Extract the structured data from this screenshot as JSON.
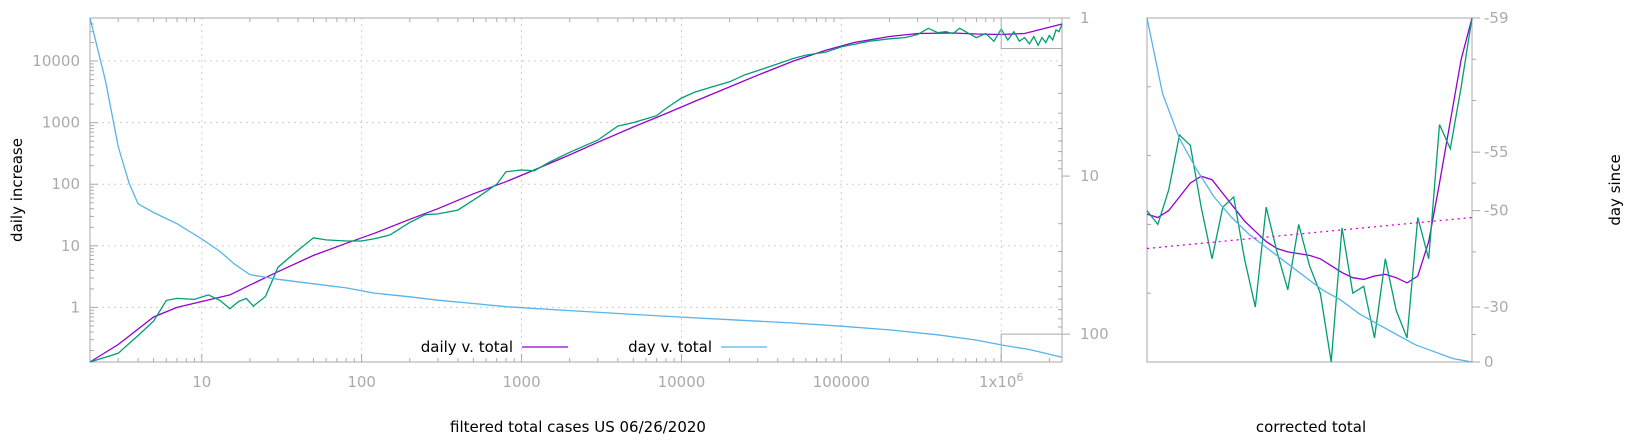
{
  "chart_data": [
    {
      "type": "line",
      "xlabel": "filtered total cases US 06/26/2020",
      "ylabel": "daily increase",
      "y2label": "",
      "xscale": "log",
      "yscale": "log",
      "xlim": [
        2,
        2400000
      ],
      "ylim": [
        0.13,
        50000
      ],
      "y2lim": [
        1,
        150
      ],
      "y2_reversed": true,
      "xticks": [
        10,
        100,
        1000,
        10000,
        100000,
        1000000
      ],
      "xtick_labels": [
        "10",
        "100",
        "1000",
        "10000",
        "100000",
        "1x10^6"
      ],
      "yticks": [
        1,
        10,
        100,
        1000,
        10000
      ],
      "ytick_labels": [
        "1",
        "10",
        "100",
        "1000",
        "10000"
      ],
      "y2ticks": [
        1,
        10,
        100
      ],
      "y2tick_labels": [
        "1",
        "10",
        "100"
      ],
      "grid": true,
      "legend": "bottom-center",
      "series": [
        {
          "name": "daily v. total",
          "color": "#9400d3",
          "axis": "y",
          "x": [
            2,
            3,
            5,
            7,
            10,
            15,
            20,
            30,
            50,
            80,
            120,
            200,
            300,
            500,
            800,
            1200,
            2000,
            3000,
            5000,
            8000,
            12000,
            20000,
            30000,
            50000,
            80000,
            120000,
            200000,
            300000,
            500000,
            700000,
            1000000,
            1400000,
            2400000
          ],
          "y": [
            0.13,
            0.25,
            0.7,
            1.0,
            1.25,
            1.6,
            2.3,
            3.8,
            7,
            11,
            16,
            27,
            40,
            70,
            110,
            170,
            300,
            480,
            850,
            1400,
            2200,
            3800,
            5900,
            10000,
            15000,
            20000,
            25000,
            28000,
            28500,
            27500,
            27000,
            28000,
            40000
          ]
        },
        {
          "name": "",
          "color": "#009e73",
          "axis": "y",
          "x": [
            2,
            3,
            4,
            5,
            6,
            7,
            9,
            11,
            13,
            15,
            17,
            19,
            21,
            25,
            30,
            40,
            50,
            60,
            80,
            100,
            120,
            150,
            200,
            250,
            300,
            400,
            550,
            700,
            800,
            1000,
            1200,
            1500,
            2000,
            3000,
            4000,
            5000,
            6000,
            7000,
            8000,
            10000,
            12000,
            15000,
            20000,
            25000,
            30000,
            40000,
            50000,
            60000,
            80000,
            100000,
            150000,
            200000,
            250000,
            300000,
            350000,
            400000,
            450000,
            500000,
            550000,
            600000,
            700000,
            800000,
            900000,
            1000000,
            1100000,
            1200000,
            1300000,
            1400000,
            1500000,
            1600000,
            1700000,
            1800000,
            1900000,
            2000000,
            2100000,
            2200000,
            2300000,
            2400000
          ],
          "y": [
            0.13,
            0.18,
            0.35,
            0.6,
            1.3,
            1.4,
            1.35,
            1.6,
            1.3,
            0.95,
            1.25,
            1.4,
            1.05,
            1.5,
            4.5,
            8.5,
            13.5,
            12.5,
            12,
            12,
            13,
            15,
            24,
            32,
            33,
            38,
            65,
            100,
            160,
            170,
            165,
            230,
            330,
            520,
            880,
            1000,
            1150,
            1300,
            1700,
            2500,
            3100,
            3700,
            4600,
            6000,
            7000,
            9000,
            11000,
            12500,
            14000,
            17000,
            21000,
            23000,
            24000,
            27000,
            34000,
            29000,
            30000,
            28000,
            34000,
            30000,
            24000,
            28000,
            21000,
            33000,
            22000,
            30000,
            21000,
            24000,
            19000,
            25000,
            18000,
            24000,
            20000,
            26000,
            22000,
            32000,
            30000,
            40000
          ]
        },
        {
          "name": "day v. total",
          "color": "#56b4e9",
          "axis": "y2",
          "x": [
            2,
            2.5,
            3,
            3.5,
            4,
            5,
            7,
            10,
            13,
            16,
            20,
            30,
            50,
            80,
            120,
            200,
            300,
            500,
            800,
            1000,
            2000,
            5000,
            10000,
            20000,
            50000,
            100000,
            200000,
            400000,
            700000,
            1000000,
            1500000,
            2400000
          ],
          "y2": [
            1,
            2.5,
            6.5,
            11,
            15,
            17,
            20,
            25,
            30,
            36,
            42,
            45,
            48,
            51,
            55,
            58,
            61,
            64,
            67,
            68,
            71,
            75,
            78,
            81,
            85,
            89,
            94,
            101,
            109,
            117,
            125,
            140
          ]
        }
      ]
    },
    {
      "type": "line",
      "xlabel": "corrected total",
      "ylabel": "",
      "y2label": "day since",
      "xtick_labels": [],
      "y2ticks": [
        -59,
        -55,
        -50,
        -30,
        0
      ],
      "y2tick_labels": [
        "-59",
        "-55",
        "-50",
        "-30",
        "0"
      ],
      "grid": false,
      "legend": "none",
      "series": [
        {
          "name": "",
          "color": "#9400d3",
          "style": "solid",
          "y_norm_top0": [
            0.57,
            0.58,
            0.56,
            0.52,
            0.48,
            0.46,
            0.47,
            0.51,
            0.55,
            0.59,
            0.62,
            0.65,
            0.67,
            0.68,
            0.685,
            0.69,
            0.7,
            0.72,
            0.74,
            0.755,
            0.76,
            0.75,
            0.745,
            0.755,
            0.77,
            0.75,
            0.65,
            0.48,
            0.3,
            0.12,
            0.0
          ]
        },
        {
          "name": "",
          "color": "#009e73",
          "style": "solid",
          "y_norm_top0": [
            0.56,
            0.6,
            0.5,
            0.34,
            0.37,
            0.55,
            0.7,
            0.55,
            0.52,
            0.7,
            0.84,
            0.55,
            0.68,
            0.79,
            0.6,
            0.72,
            0.8,
            1.0,
            0.61,
            0.8,
            0.78,
            0.93,
            0.7,
            0.85,
            0.93,
            0.58,
            0.7,
            0.31,
            0.38,
            0.2,
            0.0
          ]
        },
        {
          "name": "",
          "color": "#56b4e9",
          "style": "solid",
          "y_norm_top0": [
            0.0,
            0.22,
            0.35,
            0.44,
            0.52,
            0.58,
            0.63,
            0.67,
            0.71,
            0.75,
            0.79,
            0.82,
            0.86,
            0.89,
            0.92,
            0.95,
            0.97,
            0.99,
            1.0
          ]
        },
        {
          "name": "",
          "color": "#dd00dd",
          "style": "dotted",
          "y_norm_top0": [
            0.67,
            0.58
          ]
        }
      ]
    }
  ]
}
